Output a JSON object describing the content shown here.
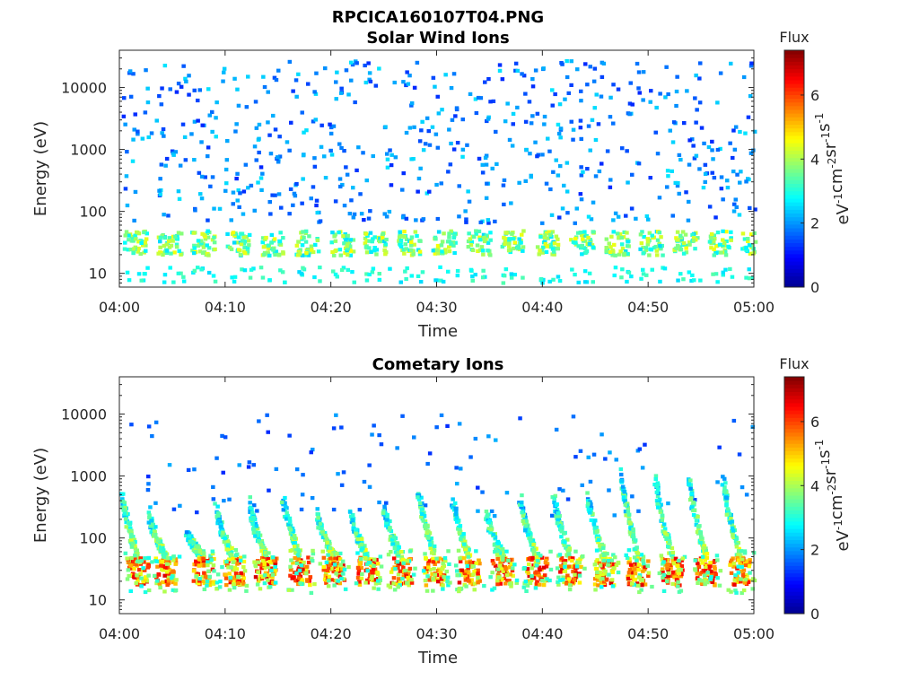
{
  "figure_title": "RPCICA160107T04.PNG",
  "colors": {
    "colormap": [
      "#00008f",
      "#0000ff",
      "#0080ff",
      "#00ffff",
      "#80ff80",
      "#ffff00",
      "#ff8000",
      "#ff0000",
      "#800000"
    ],
    "axes": "#262626"
  },
  "chart_data": [
    {
      "type": "heatmap",
      "title": "Solar Wind Ions",
      "xlabel": "Time",
      "ylabel": "Energy (eV)",
      "xlim": [
        "04:00",
        "05:00"
      ],
      "x_ticks": [
        "04:00",
        "04:10",
        "04:20",
        "04:30",
        "04:40",
        "04:50",
        "05:00"
      ],
      "yscale": "log",
      "ylim": [
        6,
        40000
      ],
      "y_ticks": [
        10,
        100,
        1000,
        10000
      ],
      "y_tick_labels": [
        "10",
        "100",
        "1000",
        "10000"
      ],
      "colorbar": {
        "title": "Flux",
        "label": "eV^-1 cm^-2 sr^-1 s^-1",
        "range": [
          0,
          7.4
        ],
        "ticks": [
          0,
          2,
          4,
          6
        ],
        "tick_labels": [
          "0",
          "2",
          "4",
          "6"
        ]
      },
      "pattern": {
        "bursts_start_min": [
          0.3,
          3.5,
          6.7,
          10,
          13.2,
          16.5,
          19.8,
          23,
          26.2,
          29.5,
          32.8,
          36,
          39.2,
          42.5,
          45.8,
          49,
          52.3,
          55.5,
          58.7
        ],
        "burst_energy_ev": [
          18,
          45
        ],
        "burst_flux": [
          2.5,
          4.6
        ],
        "background_energy_ev": [
          60,
          25000
        ],
        "background_flux": [
          1.2,
          2.6
        ]
      }
    },
    {
      "type": "heatmap",
      "title": "Cometary Ions",
      "xlabel": "Time",
      "ylabel": "Energy (eV)",
      "xlim": [
        "04:00",
        "05:00"
      ],
      "x_ticks": [
        "04:00",
        "04:10",
        "04:20",
        "04:30",
        "04:40",
        "04:50",
        "05:00"
      ],
      "yscale": "log",
      "ylim": [
        6,
        40000
      ],
      "y_ticks": [
        10,
        100,
        1000,
        10000
      ],
      "y_tick_labels": [
        "10",
        "100",
        "1000",
        "10000"
      ],
      "colorbar": {
        "title": "Flux",
        "label": "eV^-1 cm^-2 sr^-1 s^-1",
        "range": [
          0,
          7.4
        ],
        "ticks": [
          0,
          2,
          4,
          6
        ],
        "tick_labels": [
          "0",
          "2",
          "4",
          "6"
        ]
      },
      "pattern": {
        "bursts_start_min": [
          0,
          2.6,
          6.2,
          9,
          12.1,
          15.3,
          18.5,
          21.7,
          24.9,
          28.1,
          31.3,
          34.5,
          37.7,
          40.9,
          44.1,
          47.3,
          50.5,
          53.7,
          56.9
        ],
        "burst_peak_energy_ev": [
          600,
          250,
          120,
          300,
          380,
          450,
          260,
          250,
          280,
          600,
          450,
          260,
          460,
          500,
          500,
          1200,
          1000,
          900,
          1000
        ],
        "core_energy_ev": [
          16,
          45
        ],
        "core_flux": [
          4,
          6.8
        ],
        "background_energy_ev": [
          200,
          9000
        ],
        "background_flux": [
          1.2,
          2.2
        ]
      }
    }
  ]
}
